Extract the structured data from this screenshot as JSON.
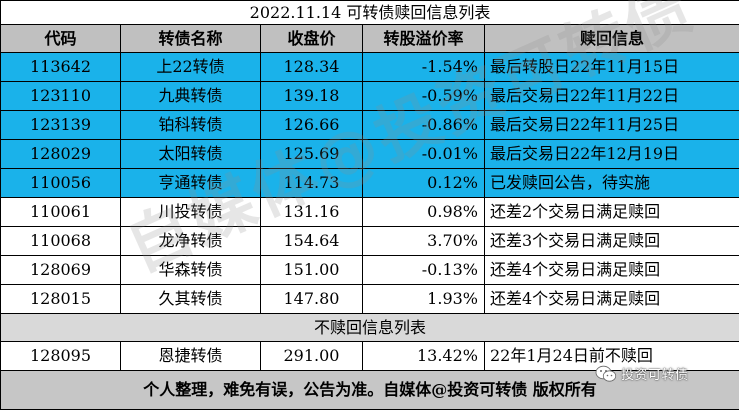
{
  "title": "2022.11.14  可转债赎回信息列表",
  "headers": [
    "代码",
    "转债名称",
    "收盘价",
    "转股溢价率",
    "赎回信息"
  ],
  "colors": {
    "highlight": "#1ab2ea",
    "header": "#c0c0c0"
  },
  "rows": [
    {
      "code": "113642",
      "name": "上22转债",
      "price": "128.34",
      "premium": "-1.54%",
      "info": "最后转股日22年11月15日",
      "highlight": true
    },
    {
      "code": "123110",
      "name": "九典转债",
      "price": "139.18",
      "premium": "-0.59%",
      "info": "最后交易日22年11月22日",
      "highlight": true
    },
    {
      "code": "123139",
      "name": "铂科转债",
      "price": "126.66",
      "premium": "-0.86%",
      "info": "最后交易日22年11月25日",
      "highlight": true
    },
    {
      "code": "128029",
      "name": "太阳转债",
      "price": "125.69",
      "premium": "-0.01%",
      "info": "最后交易日22年12月19日",
      "highlight": true
    },
    {
      "code": "110056",
      "name": "亨通转债",
      "price": "114.73",
      "premium": "0.12%",
      "info": "已发赎回公告，待实施",
      "highlight": true
    },
    {
      "code": "110061",
      "name": "川投转债",
      "price": "131.16",
      "premium": "0.98%",
      "info": "还差2个交易日满足赎回",
      "highlight": false
    },
    {
      "code": "110068",
      "name": "龙净转债",
      "price": "154.64",
      "premium": "3.70%",
      "info": "还差3个交易日满足赎回",
      "highlight": false
    },
    {
      "code": "128069",
      "name": "华森转债",
      "price": "151.00",
      "premium": "-0.13%",
      "info": "还差4个交易日满足赎回",
      "highlight": false
    },
    {
      "code": "128015",
      "name": "久其转债",
      "price": "147.80",
      "premium": "1.93%",
      "info": "还差4个交易日满足赎回",
      "highlight": false
    }
  ],
  "no_redeem_title": "不赎回信息列表",
  "no_redeem_rows": [
    {
      "code": "128095",
      "name": "恩捷转债",
      "price": "291.00",
      "premium": "13.42%",
      "info": "22年1月24日前不赎回"
    }
  ],
  "footer": "个人整理，难免有误，公告为准。自媒体@投资可转债 版权所有",
  "watermark": "自媒体@投资可转债",
  "logo": {
    "text": "投资可转债",
    "icon": "wechat-icon"
  }
}
